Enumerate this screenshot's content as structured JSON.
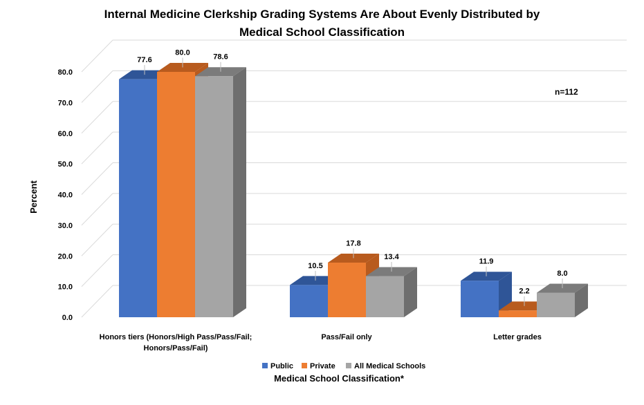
{
  "chart_data": {
    "type": "bar",
    "title_line1": "Internal Medicine Clerkship Grading Systems Are About Evenly Distributed by",
    "title_line2": "Medical School Classification",
    "xlabel": "Medical School Classification*",
    "ylabel": "Percent",
    "ylim": [
      0,
      80
    ],
    "yticks": [
      "0.0",
      "10.0",
      "20.0",
      "30.0",
      "40.0",
      "50.0",
      "60.0",
      "70.0",
      "80.0"
    ],
    "categories": [
      [
        "Honors tiers (Honors/High Pass/Pass/Fail;",
        "Honors/Pass/Fail)"
      ],
      [
        "Pass/Fail only"
      ],
      [
        "Letter grades"
      ]
    ],
    "series": [
      {
        "name": "Public",
        "values": [
          77.6,
          10.5,
          11.9
        ],
        "labels": [
          "77.6",
          "10.5",
          "11.9"
        ],
        "color": "#4472C4",
        "top": "#2F5597",
        "side": "#2F5597"
      },
      {
        "name": "Private",
        "values": [
          80.0,
          17.8,
          2.2
        ],
        "labels": [
          "80.0",
          "17.8",
          "2.2"
        ],
        "color": "#ED7D31",
        "top": "#B85B1E",
        "side": "#B85B1E"
      },
      {
        "name": "All Medical Schools",
        "values": [
          78.6,
          13.4,
          8.0
        ],
        "labels": [
          "78.6",
          "13.4",
          "8.0"
        ],
        "color": "#A5A5A5",
        "top": "#7B7B7B",
        "side": "#6E6E6E"
      }
    ],
    "annotation": "n=112",
    "grid": true,
    "legend_position": "bottom"
  }
}
